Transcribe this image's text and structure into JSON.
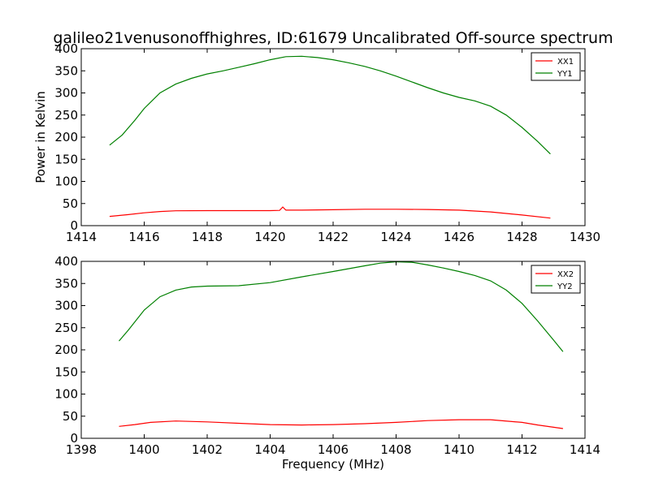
{
  "title": "galileo21venusonoffhighres, ID:61679 Uncalibrated Off-source spectrum",
  "colors": {
    "red": "#ff0000",
    "green": "#008000",
    "axes": "#000000"
  },
  "chart_data": [
    {
      "type": "line",
      "title": "galileo21venusonoffhighres, ID:61679 Uncalibrated Off-source spectrum",
      "xlabel": "",
      "ylabel": "Power in Kelvin",
      "xlim": [
        1414,
        1430
      ],
      "ylim": [
        0,
        400
      ],
      "xticks": [
        1414,
        1416,
        1418,
        1420,
        1422,
        1424,
        1426,
        1428,
        1430
      ],
      "yticks": [
        0,
        50,
        100,
        150,
        200,
        250,
        300,
        350,
        400
      ],
      "grid": false,
      "legend": "top-right",
      "series": [
        {
          "name": "XX1",
          "color": "#ff0000",
          "points": [
            [
              1414.9,
              21
            ],
            [
              1415.5,
              25
            ],
            [
              1416.0,
              29
            ],
            [
              1416.5,
              32
            ],
            [
              1417.0,
              33.5
            ],
            [
              1418.0,
              34
            ],
            [
              1419.0,
              34
            ],
            [
              1420.0,
              34
            ],
            [
              1420.3,
              34.5
            ],
            [
              1420.4,
              42
            ],
            [
              1420.5,
              35
            ],
            [
              1421.0,
              35
            ],
            [
              1422.0,
              36
            ],
            [
              1423.0,
              37
            ],
            [
              1424.0,
              37
            ],
            [
              1425.0,
              36.5
            ],
            [
              1426.0,
              35
            ],
            [
              1426.5,
              33
            ],
            [
              1427.0,
              31
            ],
            [
              1428.0,
              24
            ],
            [
              1428.9,
              17
            ]
          ]
        },
        {
          "name": "YY1",
          "color": "#008000",
          "points": [
            [
              1414.9,
              182
            ],
            [
              1415.3,
              205
            ],
            [
              1415.7,
              238
            ],
            [
              1416.0,
              265
            ],
            [
              1416.5,
              300
            ],
            [
              1417.0,
              320
            ],
            [
              1417.5,
              333
            ],
            [
              1418.0,
              343
            ],
            [
              1418.5,
              350
            ],
            [
              1419.0,
              358
            ],
            [
              1419.5,
              366
            ],
            [
              1420.0,
              375
            ],
            [
              1420.5,
              382
            ],
            [
              1421.0,
              383
            ],
            [
              1421.5,
              380
            ],
            [
              1422.0,
              375
            ],
            [
              1422.5,
              368
            ],
            [
              1423.0,
              360
            ],
            [
              1423.5,
              350
            ],
            [
              1424.0,
              338
            ],
            [
              1424.5,
              325
            ],
            [
              1425.0,
              312
            ],
            [
              1425.5,
              300
            ],
            [
              1426.0,
              290
            ],
            [
              1426.5,
              282
            ],
            [
              1427.0,
              270
            ],
            [
              1427.5,
              250
            ],
            [
              1428.0,
              222
            ],
            [
              1428.5,
              190
            ],
            [
              1428.9,
              162
            ]
          ]
        }
      ]
    },
    {
      "type": "line",
      "title": "",
      "xlabel": "Frequency (MHz)",
      "ylabel": "",
      "xlim": [
        1398,
        1414
      ],
      "ylim": [
        0,
        400
      ],
      "xticks": [
        1398,
        1400,
        1402,
        1404,
        1406,
        1408,
        1410,
        1412,
        1414
      ],
      "yticks": [
        0,
        50,
        100,
        150,
        200,
        250,
        300,
        350,
        400
      ],
      "grid": false,
      "legend": "top-right",
      "series": [
        {
          "name": "XX2",
          "color": "#ff0000",
          "points": [
            [
              1399.2,
              27
            ],
            [
              1399.7,
              31
            ],
            [
              1400.2,
              36
            ],
            [
              1401.0,
              39
            ],
            [
              1402.0,
              37
            ],
            [
              1403.0,
              34
            ],
            [
              1404.0,
              31
            ],
            [
              1405.0,
              30
            ],
            [
              1406.0,
              31
            ],
            [
              1407.0,
              33
            ],
            [
              1408.0,
              36
            ],
            [
              1409.0,
              40
            ],
            [
              1410.0,
              42
            ],
            [
              1411.0,
              42
            ],
            [
              1412.0,
              36
            ],
            [
              1412.5,
              30
            ],
            [
              1413.3,
              22
            ]
          ]
        },
        {
          "name": "YY2",
          "color": "#008000",
          "points": [
            [
              1399.2,
              220
            ],
            [
              1399.5,
              245
            ],
            [
              1400.0,
              290
            ],
            [
              1400.5,
              320
            ],
            [
              1401.0,
              335
            ],
            [
              1401.5,
              342
            ],
            [
              1402.0,
              344
            ],
            [
              1403.0,
              345
            ],
            [
              1404.0,
              352
            ],
            [
              1405.0,
              365
            ],
            [
              1406.0,
              377
            ],
            [
              1407.0,
              390
            ],
            [
              1407.5,
              396
            ],
            [
              1408.0,
              399
            ],
            [
              1408.5,
              398
            ],
            [
              1409.0,
              392
            ],
            [
              1409.5,
              385
            ],
            [
              1410.0,
              377
            ],
            [
              1410.5,
              368
            ],
            [
              1411.0,
              356
            ],
            [
              1411.5,
              335
            ],
            [
              1412.0,
              305
            ],
            [
              1412.5,
              265
            ],
            [
              1413.0,
              222
            ],
            [
              1413.3,
              196
            ]
          ]
        }
      ]
    }
  ]
}
